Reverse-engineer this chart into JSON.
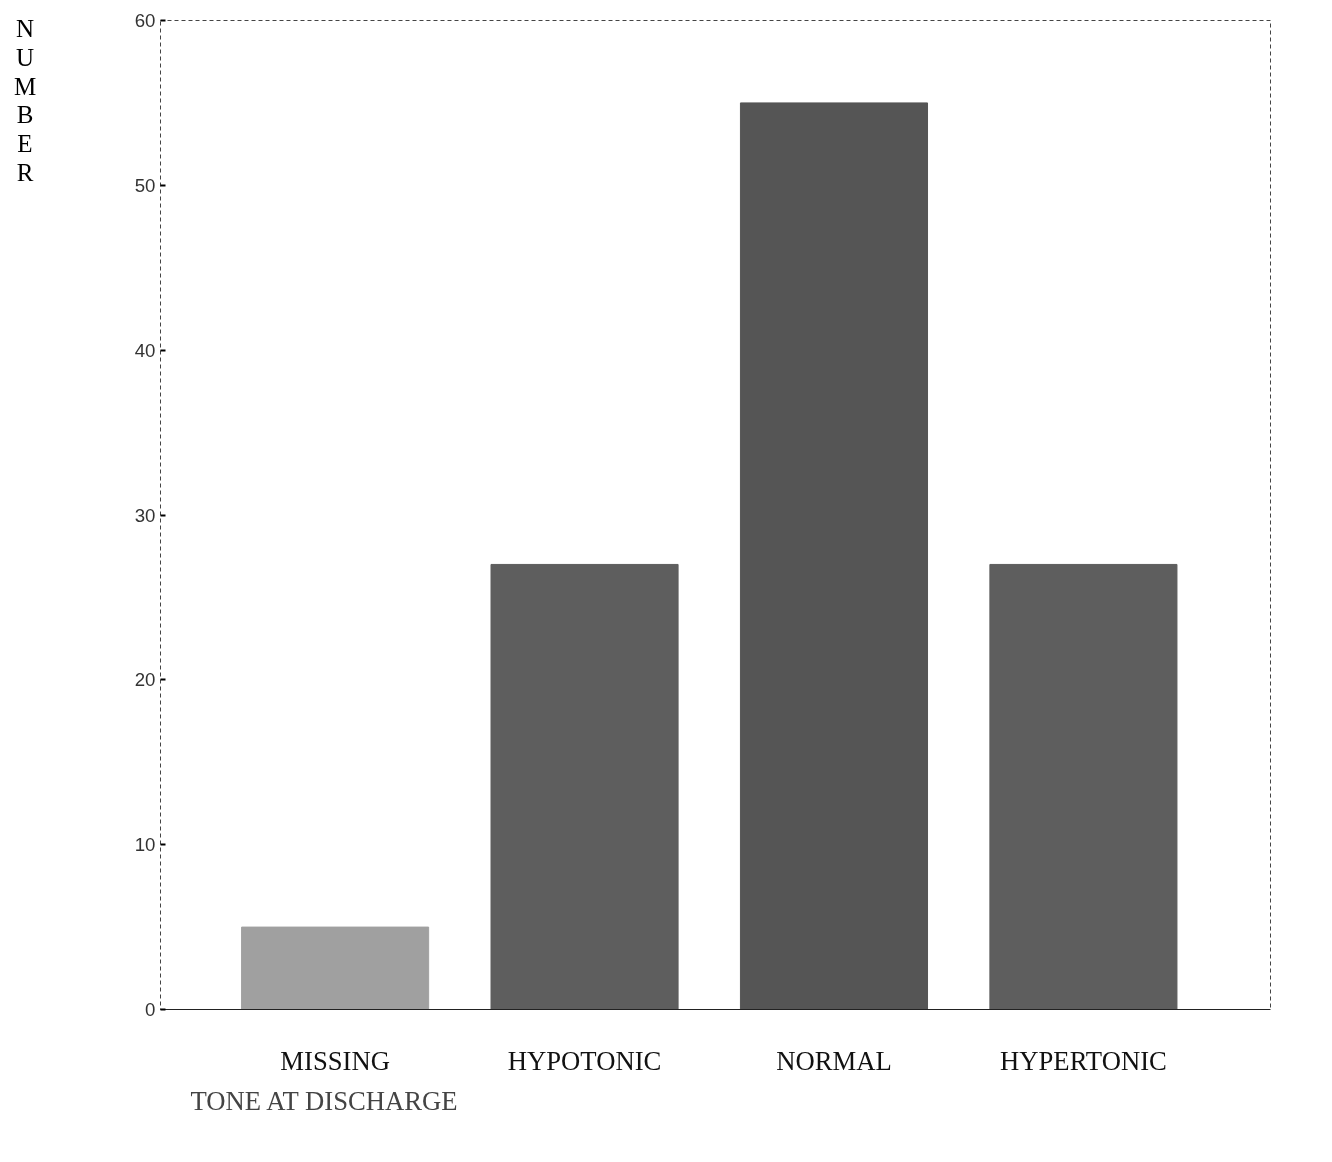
{
  "chart_data": {
    "type": "bar",
    "xlabel": "TONE AT DISCHARGE",
    "ylabel": "NUMBER",
    "categories": [
      "MISSING",
      "HYPOTONIC",
      "NORMAL",
      "HYPERTONIC"
    ],
    "values": [
      5,
      27,
      55,
      27
    ],
    "colors": [
      "#a0a0a0",
      "#5e5e5e",
      "#555555",
      "#5e5e5e"
    ],
    "ylim": [
      0,
      60
    ],
    "yticks": [
      0,
      10,
      20,
      30,
      40,
      50,
      60
    ],
    "grid": false
  }
}
